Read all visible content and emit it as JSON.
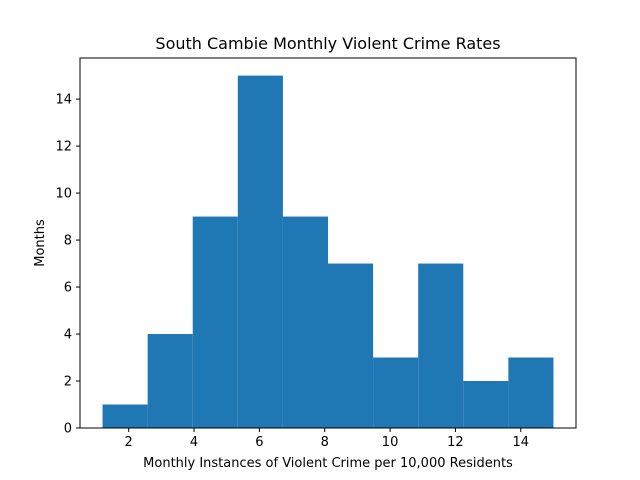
{
  "chart_data": {
    "type": "histogram",
    "title": "South Cambie Monthly Violent Crime Rates",
    "xlabel": "Monthly Instances of Violent Crime per 10,000 Residents",
    "ylabel": "Months",
    "bin_edges": [
      1.2,
      2.58,
      3.96,
      5.34,
      6.72,
      8.1,
      9.48,
      10.86,
      12.24,
      13.62,
      15.0
    ],
    "counts": [
      1,
      4,
      9,
      15,
      9,
      7,
      3,
      7,
      2,
      3
    ],
    "xlim": [
      0.51,
      15.69
    ],
    "ylim": [
      0,
      15.75
    ],
    "xticks": [
      2,
      4,
      6,
      8,
      10,
      12,
      14
    ],
    "yticks": [
      0,
      2,
      4,
      6,
      8,
      10,
      12,
      14
    ],
    "bar_color": "#1f77b4",
    "grid": false
  }
}
